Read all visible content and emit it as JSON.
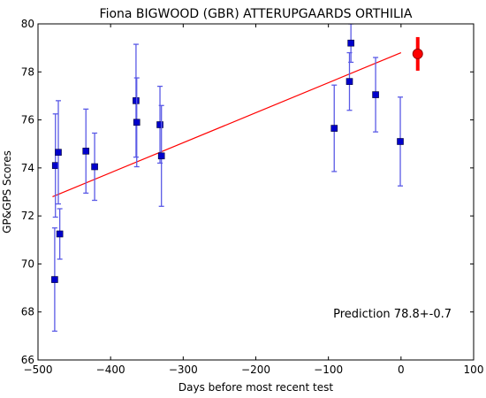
{
  "chart_data": {
    "type": "scatter",
    "title": "Fiona BIGWOOD (GBR) ATTERUPGAARDS ORTHILIA",
    "xlabel": "Days before most recent test",
    "ylabel": "GP&GPS Scores",
    "xlim": [
      -500,
      100
    ],
    "ylim": [
      66,
      80
    ],
    "xticks": [
      -500,
      -400,
      -300,
      -200,
      -100,
      0,
      100
    ],
    "yticks": [
      66,
      68,
      70,
      72,
      74,
      76,
      78,
      80
    ],
    "grid": false,
    "series": [
      {
        "marker": "square",
        "color": "#0000cc",
        "errorbar_color": "#5a5ae6",
        "points": [
          {
            "x": -477,
            "y": 69.35,
            "err": 2.15
          },
          {
            "x": -476,
            "y": 74.1,
            "err": 2.15
          },
          {
            "x": -472,
            "y": 74.65,
            "err": 2.15
          },
          {
            "x": -470,
            "y": 71.25,
            "err": 1.05
          },
          {
            "x": -434,
            "y": 74.7,
            "err": 1.75
          },
          {
            "x": -422,
            "y": 74.05,
            "err": 1.4
          },
          {
            "x": -365,
            "y": 76.8,
            "err": 2.35
          },
          {
            "x": -364,
            "y": 75.9,
            "err": 1.85
          },
          {
            "x": -332,
            "y": 75.8,
            "err": 1.6
          },
          {
            "x": -330,
            "y": 74.5,
            "err": 2.1
          },
          {
            "x": -92,
            "y": 75.65,
            "err": 1.8
          },
          {
            "x": -71,
            "y": 77.6,
            "err": 1.2
          },
          {
            "x": -69,
            "y": 79.2,
            "err": 0.8
          },
          {
            "x": -35,
            "y": 77.05,
            "err": 1.55
          },
          {
            "x": -1,
            "y": 75.1,
            "err": 1.85
          }
        ]
      }
    ],
    "trend_line": {
      "color": "#ff0000",
      "x": [
        -480,
        0
      ],
      "y": [
        72.8,
        78.8
      ]
    },
    "prediction_point": {
      "x": 23,
      "y": 78.75,
      "err": 0.7,
      "color": "#ff0000"
    },
    "annotation": "Prediction 78.8+-0.7"
  }
}
